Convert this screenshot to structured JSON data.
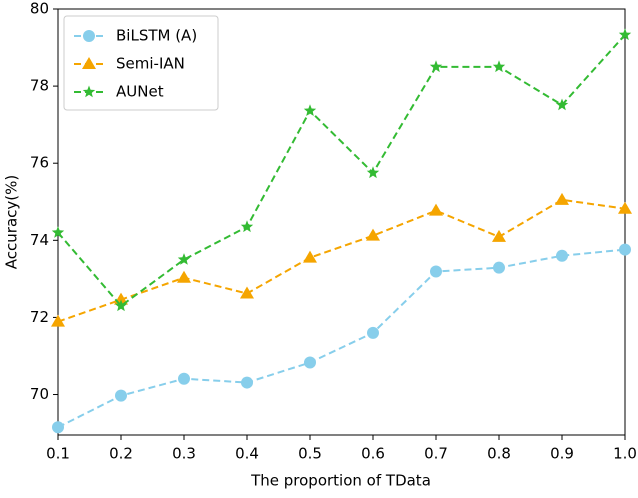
{
  "chart_data": {
    "type": "line",
    "x_label": "The proportion of TData",
    "y_label": "Accuracy(%)",
    "x": [
      0.1,
      0.2,
      0.3,
      0.4,
      0.5,
      0.6,
      0.7,
      0.8,
      0.9,
      1.0
    ],
    "series": [
      {
        "name": "BiLSTM (A)",
        "color": "#87ceeb",
        "marker": "circle",
        "values": [
          69.15,
          69.97,
          70.41,
          70.31,
          70.83,
          71.6,
          73.19,
          73.29,
          73.6,
          73.76
        ]
      },
      {
        "name": "Semi-IAN",
        "color": "#f5a500",
        "marker": "triangle",
        "values": [
          71.89,
          72.46,
          73.03,
          72.62,
          73.55,
          74.12,
          74.77,
          74.09,
          75.05,
          74.82
        ]
      },
      {
        "name": "AUNet",
        "color": "#33bb33",
        "marker": "star",
        "values": [
          74.2,
          72.3,
          73.5,
          74.35,
          77.36,
          75.75,
          78.5,
          78.5,
          77.51,
          79.33
        ]
      }
    ],
    "xlim": [
      0.1,
      1.0
    ],
    "ylim": [
      68.95,
      80
    ],
    "xticks": [
      0.1,
      0.2,
      0.3,
      0.4,
      0.5,
      0.6,
      0.7,
      0.8,
      0.9,
      {
        "value": 1,
        "label": "1.0"
      }
    ],
    "yticks": [
      70,
      72,
      74,
      76,
      78,
      80
    ],
    "legend": "upper left"
  }
}
